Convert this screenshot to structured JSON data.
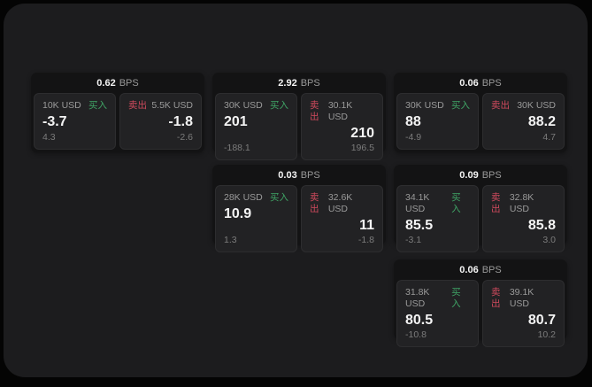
{
  "colors": {
    "page_bg": "#1c1c1e",
    "card_bg": "#131314",
    "tile_bg": "#222224",
    "tile_border": "#2d2d2f",
    "buy": "#3fa465",
    "sell": "#cf4a5d",
    "value": "#f4f4f4",
    "label": "#9a9a9a",
    "sub": "#7c7c7c"
  },
  "labels": {
    "bps": "BPS",
    "buy": "买入",
    "sell": "卖出"
  },
  "cards": [
    {
      "spread": "0.62",
      "buy": {
        "size": "10K USD",
        "price": "-3.7",
        "delta": "4.3"
      },
      "sell": {
        "size": "5.5K USD",
        "price": "-1.8",
        "delta": "-2.6"
      }
    },
    {
      "spread": "2.92",
      "buy": {
        "size": "30K USD",
        "price": "201",
        "delta": "-188.1"
      },
      "sell": {
        "size": "30.1K USD",
        "price": "210",
        "delta": "196.5"
      }
    },
    {
      "spread": "0.06",
      "buy": {
        "size": "30K USD",
        "price": "88",
        "delta": "-4.9"
      },
      "sell": {
        "size": "30K USD",
        "price": "88.2",
        "delta": "4.7"
      }
    },
    {
      "spread": "0.03",
      "buy": {
        "size": "28K USD",
        "price": "10.9",
        "delta": "1.3"
      },
      "sell": {
        "size": "32.6K USD",
        "price": "11",
        "delta": "-1.8"
      }
    },
    {
      "spread": "0.09",
      "buy": {
        "size": "34.1K USD",
        "price": "85.5",
        "delta": "-3.1"
      },
      "sell": {
        "size": "32.8K USD",
        "price": "85.8",
        "delta": "3.0"
      }
    },
    {
      "spread": "0.06",
      "buy": {
        "size": "31.8K USD",
        "price": "80.5",
        "delta": "-10.8"
      },
      "sell": {
        "size": "39.1K USD",
        "price": "80.7",
        "delta": "10.2"
      }
    }
  ]
}
